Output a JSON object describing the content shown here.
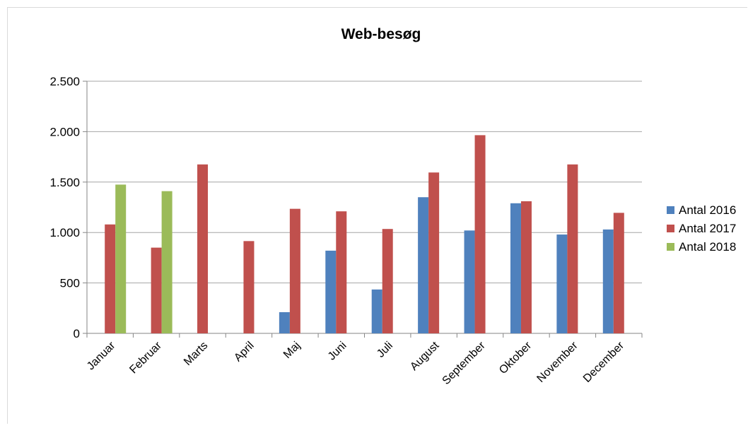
{
  "chart_data": {
    "type": "bar",
    "title": "Web-besøg",
    "xlabel": "",
    "ylabel": "",
    "categories": [
      "Januar",
      "Februar",
      "Marts",
      "April",
      "Maj",
      "Juni",
      "Juli",
      "August",
      "September",
      "Oktober",
      "November",
      "December"
    ],
    "series": [
      {
        "name": "Antal 2016",
        "color": "#4f81bd",
        "values": [
          null,
          null,
          null,
          null,
          210,
          820,
          435,
          1350,
          1020,
          1290,
          980,
          1030
        ]
      },
      {
        "name": "Antal 2017",
        "color": "#c0504d",
        "values": [
          1080,
          850,
          1675,
          915,
          1235,
          1210,
          1035,
          1595,
          1965,
          1310,
          1675,
          1195
        ]
      },
      {
        "name": "Antal 2018",
        "color": "#9bbb59",
        "values": [
          1475,
          1410,
          null,
          null,
          null,
          null,
          null,
          null,
          null,
          null,
          null,
          null
        ]
      }
    ],
    "ylim": [
      0,
      2500
    ],
    "yticks": [
      0,
      500,
      1000,
      1500,
      2000,
      2500
    ],
    "ytick_labels": [
      "0",
      "500",
      "1.000",
      "1.500",
      "2.000",
      "2.500"
    ],
    "grid": true,
    "legend_position": "right"
  }
}
